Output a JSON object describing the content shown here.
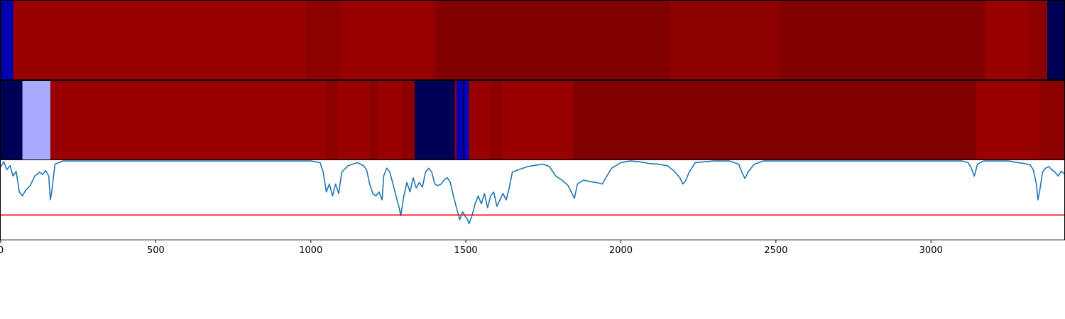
{
  "chart_data": [
    {
      "type": "heatmap",
      "xlim": [
        0,
        3430
      ],
      "colors": {
        "dark_red": "#800000",
        "red": "#990000",
        "mid_red": "#8c0000",
        "navy": "#000055",
        "blue": "#0000b4",
        "light_blue": "#aaaaff"
      },
      "segments": [
        {
          "x0": 0,
          "x1": 8,
          "color": "#000088"
        },
        {
          "x0": 8,
          "x1": 40,
          "color": "#0000b4"
        },
        {
          "x0": 40,
          "x1": 985,
          "color": "#990000"
        },
        {
          "x0": 985,
          "x1": 1095,
          "color": "#8c0000"
        },
        {
          "x0": 1095,
          "x1": 1395,
          "color": "#990000"
        },
        {
          "x0": 1395,
          "x1": 1410,
          "color": "#8c0000"
        },
        {
          "x0": 1410,
          "x1": 2155,
          "color": "#800000"
        },
        {
          "x0": 2155,
          "x1": 2515,
          "color": "#8c0000"
        },
        {
          "x0": 2515,
          "x1": 3175,
          "color": "#800000"
        },
        {
          "x0": 3175,
          "x1": 3315,
          "color": "#990000"
        },
        {
          "x0": 3315,
          "x1": 3375,
          "color": "#8c0000"
        },
        {
          "x0": 3375,
          "x1": 3430,
          "color": "#000055"
        }
      ]
    },
    {
      "type": "heatmap",
      "xlim": [
        0,
        3430
      ],
      "segments": [
        {
          "x0": 0,
          "x1": 70,
          "color": "#000055"
        },
        {
          "x0": 70,
          "x1": 160,
          "color": "#aaaaff"
        },
        {
          "x0": 160,
          "x1": 1050,
          "color": "#990000"
        },
        {
          "x0": 1050,
          "x1": 1085,
          "color": "#8c0000"
        },
        {
          "x0": 1085,
          "x1": 1190,
          "color": "#990000"
        },
        {
          "x0": 1190,
          "x1": 1215,
          "color": "#8c0000"
        },
        {
          "x0": 1215,
          "x1": 1295,
          "color": "#990000"
        },
        {
          "x0": 1295,
          "x1": 1335,
          "color": "#8c0000"
        },
        {
          "x0": 1335,
          "x1": 1465,
          "color": "#000055"
        },
        {
          "x0": 1465,
          "x1": 1470,
          "color": "#990000"
        },
        {
          "x0": 1470,
          "x1": 1490,
          "color": "#0000b4"
        },
        {
          "x0": 1490,
          "x1": 1495,
          "color": "#000055"
        },
        {
          "x0": 1495,
          "x1": 1510,
          "color": "#0000b4"
        },
        {
          "x0": 1510,
          "x1": 1575,
          "color": "#990000"
        },
        {
          "x0": 1575,
          "x1": 1610,
          "color": "#8c0000"
        },
        {
          "x0": 1610,
          "x1": 1615,
          "color": "#800000"
        },
        {
          "x0": 1615,
          "x1": 1845,
          "color": "#990000"
        },
        {
          "x0": 1845,
          "x1": 3145,
          "color": "#800000"
        },
        {
          "x0": 3145,
          "x1": 3350,
          "color": "#990000"
        },
        {
          "x0": 3350,
          "x1": 3430,
          "color": "#8c0000"
        }
      ]
    },
    {
      "type": "line",
      "xlim": [
        0,
        3430
      ],
      "ylim": [
        0,
        1
      ],
      "xticks": [
        0,
        500,
        1000,
        1500,
        2000,
        2500,
        3000
      ],
      "xtick_labels": [
        "0",
        "500",
        "1000",
        "1500",
        "2000",
        "2500",
        "3000"
      ],
      "line_color": "#1f77b4",
      "threshold": {
        "value": 0.31,
        "color": "#ff0000"
      },
      "series": [
        {
          "points": [
            [
              0,
              0.92
            ],
            [
              10,
              0.98
            ],
            [
              20,
              0.88
            ],
            [
              30,
              0.93
            ],
            [
              40,
              0.8
            ],
            [
              50,
              0.86
            ],
            [
              60,
              0.6
            ],
            [
              70,
              0.55
            ],
            [
              80,
              0.62
            ],
            [
              95,
              0.68
            ],
            [
              110,
              0.8
            ],
            [
              125,
              0.85
            ],
            [
              135,
              0.82
            ],
            [
              145,
              0.87
            ],
            [
              155,
              0.8
            ],
            [
              160,
              0.5
            ],
            [
              165,
              0.62
            ],
            [
              175,
              0.95
            ],
            [
              200,
              0.99
            ],
            [
              400,
              0.99
            ],
            [
              700,
              0.99
            ],
            [
              1000,
              0.99
            ],
            [
              1030,
              0.97
            ],
            [
              1040,
              0.85
            ],
            [
              1050,
              0.6
            ],
            [
              1060,
              0.7
            ],
            [
              1070,
              0.55
            ],
            [
              1080,
              0.7
            ],
            [
              1090,
              0.58
            ],
            [
              1100,
              0.85
            ],
            [
              1120,
              0.93
            ],
            [
              1150,
              0.97
            ],
            [
              1170,
              0.93
            ],
            [
              1180,
              0.88
            ],
            [
              1190,
              0.7
            ],
            [
              1200,
              0.58
            ],
            [
              1210,
              0.55
            ],
            [
              1220,
              0.6
            ],
            [
              1230,
              0.5
            ],
            [
              1235,
              0.8
            ],
            [
              1245,
              0.9
            ],
            [
              1255,
              0.85
            ],
            [
              1265,
              0.7
            ],
            [
              1275,
              0.55
            ],
            [
              1285,
              0.4
            ],
            [
              1290,
              0.3
            ],
            [
              1300,
              0.55
            ],
            [
              1310,
              0.72
            ],
            [
              1320,
              0.6
            ],
            [
              1330,
              0.78
            ],
            [
              1340,
              0.65
            ],
            [
              1350,
              0.72
            ],
            [
              1360,
              0.66
            ],
            [
              1370,
              0.85
            ],
            [
              1380,
              0.9
            ],
            [
              1390,
              0.85
            ],
            [
              1400,
              0.7
            ],
            [
              1410,
              0.68
            ],
            [
              1420,
              0.7
            ],
            [
              1430,
              0.75
            ],
            [
              1440,
              0.78
            ],
            [
              1450,
              0.72
            ],
            [
              1460,
              0.55
            ],
            [
              1470,
              0.4
            ],
            [
              1480,
              0.25
            ],
            [
              1490,
              0.35
            ],
            [
              1500,
              0.28
            ],
            [
              1505,
              0.26
            ],
            [
              1510,
              0.2
            ],
            [
              1520,
              0.3
            ],
            [
              1530,
              0.45
            ],
            [
              1540,
              0.55
            ],
            [
              1550,
              0.45
            ],
            [
              1560,
              0.58
            ],
            [
              1570,
              0.4
            ],
            [
              1580,
              0.55
            ],
            [
              1590,
              0.6
            ],
            [
              1600,
              0.42
            ],
            [
              1610,
              0.5
            ],
            [
              1620,
              0.58
            ],
            [
              1630,
              0.5
            ],
            [
              1640,
              0.65
            ],
            [
              1650,
              0.85
            ],
            [
              1670,
              0.88
            ],
            [
              1700,
              0.92
            ],
            [
              1730,
              0.94
            ],
            [
              1750,
              0.95
            ],
            [
              1770,
              0.92
            ],
            [
              1790,
              0.8
            ],
            [
              1810,
              0.75
            ],
            [
              1830,
              0.68
            ],
            [
              1850,
              0.52
            ],
            [
              1860,
              0.7
            ],
            [
              1880,
              0.75
            ],
            [
              1900,
              0.73
            ],
            [
              1920,
              0.72
            ],
            [
              1940,
              0.7
            ],
            [
              1955,
              0.8
            ],
            [
              1970,
              0.9
            ],
            [
              2000,
              0.97
            ],
            [
              2030,
              0.99
            ],
            [
              2060,
              0.98
            ],
            [
              2090,
              0.96
            ],
            [
              2120,
              0.95
            ],
            [
              2150,
              0.93
            ],
            [
              2170,
              0.87
            ],
            [
              2190,
              0.78
            ],
            [
              2200,
              0.7
            ],
            [
              2210,
              0.75
            ],
            [
              2220,
              0.85
            ],
            [
              2240,
              0.97
            ],
            [
              2300,
              0.99
            ],
            [
              2350,
              0.99
            ],
            [
              2380,
              0.95
            ],
            [
              2390,
              0.85
            ],
            [
              2400,
              0.77
            ],
            [
              2410,
              0.85
            ],
            [
              2430,
              0.95
            ],
            [
              2460,
              0.99
            ],
            [
              2500,
              0.99
            ],
            [
              3000,
              0.99
            ],
            [
              3100,
              0.99
            ],
            [
              3120,
              0.97
            ],
            [
              3130,
              0.9
            ],
            [
              3140,
              0.8
            ],
            [
              3150,
              0.95
            ],
            [
              3170,
              0.99
            ],
            [
              3250,
              0.99
            ],
            [
              3280,
              0.97
            ],
            [
              3300,
              0.96
            ],
            [
              3320,
              0.94
            ],
            [
              3330,
              0.88
            ],
            [
              3340,
              0.7
            ],
            [
              3345,
              0.5
            ],
            [
              3350,
              0.6
            ],
            [
              3360,
              0.85
            ],
            [
              3370,
              0.9
            ],
            [
              3380,
              0.92
            ],
            [
              3390,
              0.88
            ],
            [
              3400,
              0.85
            ],
            [
              3410,
              0.8
            ],
            [
              3420,
              0.86
            ],
            [
              3430,
              0.83
            ]
          ]
        }
      ]
    }
  ]
}
